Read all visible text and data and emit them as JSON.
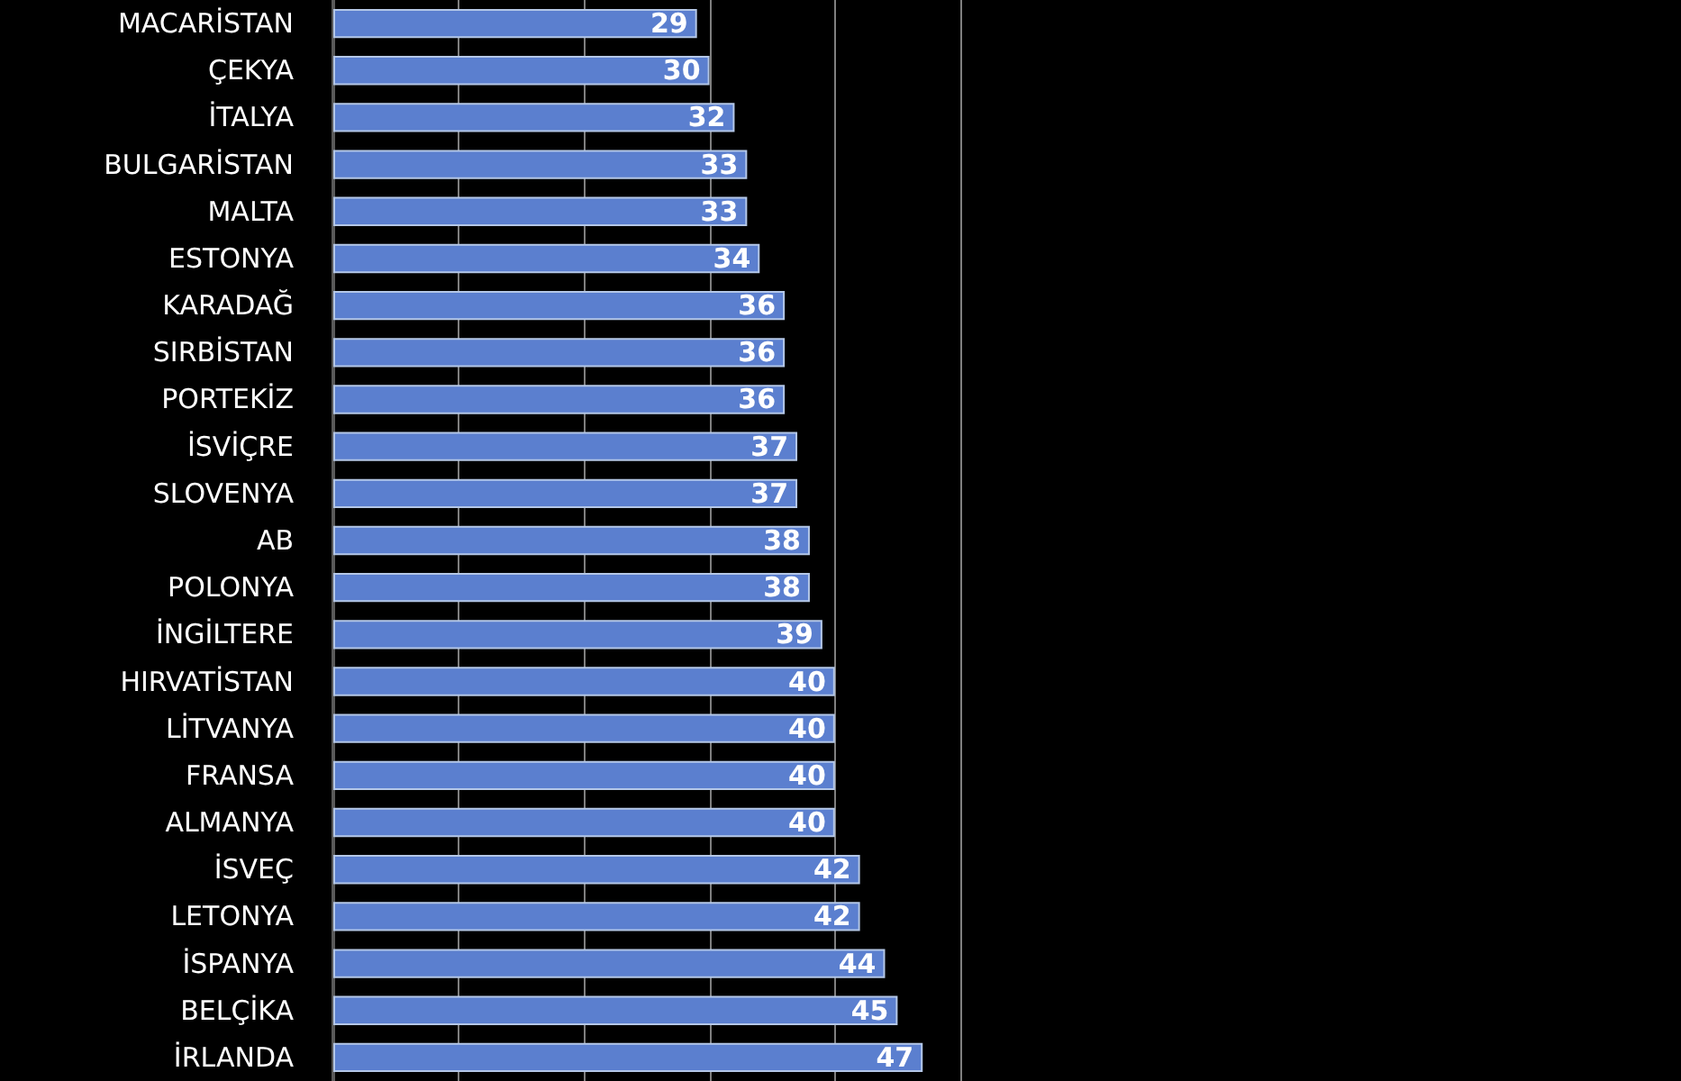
{
  "chart_data": {
    "type": "bar",
    "orientation": "horizontal",
    "categories": [
      "MACARİSTAN",
      "ÇEKYA",
      "İTALYA",
      "BULGARİSTAN",
      "MALTA",
      "ESTONYA",
      "KARADAĞ",
      "SIRBİSTAN",
      "PORTEKİZ",
      "İSVİÇRE",
      "SLOVENYA",
      "AB",
      "POLONYA",
      "İNGİLTERE",
      "HIRVATİSTAN",
      "LİTVANYA",
      "FRANSA",
      "ALMANYA",
      "İSVEÇ",
      "LETONYA",
      "İSPANYA",
      "BELÇİKA",
      "İRLANDA"
    ],
    "values": [
      29,
      30,
      32,
      33,
      33,
      34,
      36,
      36,
      36,
      37,
      37,
      38,
      38,
      39,
      40,
      40,
      40,
      40,
      42,
      42,
      44,
      45,
      47
    ],
    "color": "#5b7fcf",
    "tick_labels": "y",
    "grid": "x",
    "data_labels": true
  }
}
